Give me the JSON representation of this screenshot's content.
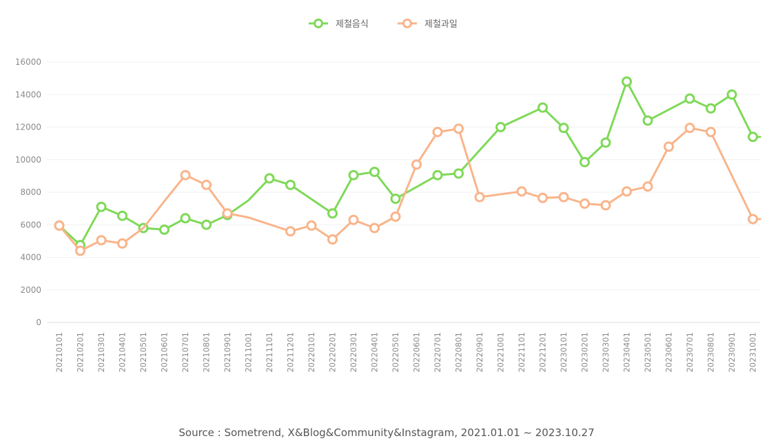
{
  "chart_data": {
    "type": "line",
    "title": "",
    "xlabel": "",
    "ylabel": "",
    "ylim": [
      0,
      16000
    ],
    "yticks": [
      0,
      2000,
      4000,
      6000,
      8000,
      10000,
      12000,
      14000,
      16000
    ],
    "grid": true,
    "legend_position": "top-center",
    "source": "Source : Sometrend, X&Blog&Community&Instagram, 2021.01.01 ~ 2023.10.27",
    "categories": [
      "20210101",
      "20210201",
      "20210301",
      "20210401",
      "20210501",
      "20210601",
      "20210701",
      "20210801",
      "20210901",
      "20211001",
      "20211101",
      "20211201",
      "20220101",
      "20220201",
      "20220301",
      "20220401",
      "20220501",
      "20220601",
      "20220701",
      "20220801",
      "20220901",
      "20221001",
      "20221101",
      "20221201",
      "20230101",
      "20230201",
      "20230301",
      "20230401",
      "20230501",
      "20230601",
      "20230701",
      "20230801",
      "20230901",
      "20231001"
    ],
    "series": [
      {
        "name": "제철음식",
        "color": "#7ed957",
        "values": [
          5950,
          4750,
          7100,
          6550,
          5800,
          5700,
          6400,
          6000,
          6600,
          7500,
          8850,
          8450,
          null,
          6700,
          9050,
          9250,
          7600,
          null,
          9050,
          9150,
          null,
          12000,
          null,
          13200,
          11950,
          9850,
          11050,
          14800,
          12400,
          null,
          13750,
          13150,
          14000,
          11400
        ],
        "markers": [
          true,
          true,
          true,
          true,
          true,
          true,
          true,
          true,
          true,
          false,
          true,
          true,
          false,
          true,
          true,
          true,
          true,
          false,
          true,
          true,
          false,
          true,
          false,
          true,
          true,
          true,
          true,
          true,
          true,
          false,
          true,
          true,
          true,
          true
        ],
        "tail_value": 11400
      },
      {
        "name": "제철과일",
        "color": "#f9b48a",
        "values": [
          5950,
          4400,
          5050,
          4850,
          5800,
          7450,
          9050,
          8450,
          6700,
          6450,
          null,
          5600,
          5950,
          5100,
          6300,
          5800,
          6500,
          9700,
          11700,
          11900,
          7700,
          null,
          8050,
          7650,
          7700,
          7300,
          7200,
          8050,
          8350,
          10800,
          11950,
          11700,
          null,
          6350
        ],
        "markers": [
          true,
          true,
          true,
          true,
          false,
          false,
          true,
          true,
          true,
          false,
          false,
          true,
          true,
          true,
          true,
          true,
          true,
          true,
          true,
          true,
          true,
          false,
          true,
          true,
          true,
          true,
          true,
          true,
          true,
          true,
          true,
          true,
          false,
          true
        ],
        "tail_value": 6350
      }
    ]
  }
}
